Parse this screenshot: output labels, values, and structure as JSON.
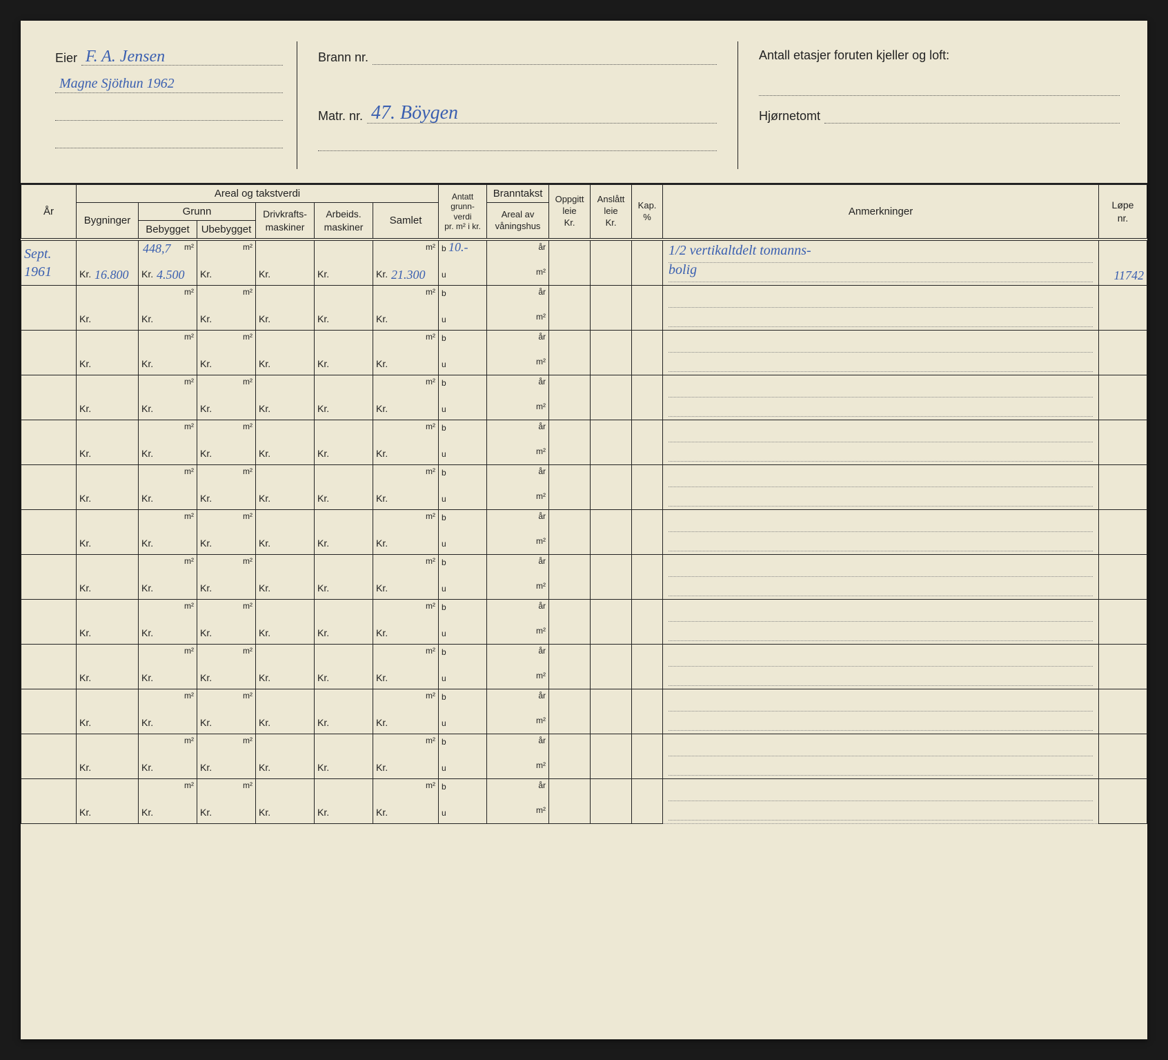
{
  "header": {
    "eier_label": "Eier",
    "eier_line1": "F. A. Jensen",
    "eier_line2": "Magne Sjöthun 1962",
    "brann_label": "Brann nr.",
    "brann_value": "",
    "matr_label": "Matr. nr.",
    "matr_value": "47. Böygen",
    "etasjer_label": "Antall etasjer foruten kjeller og loft:",
    "etasjer_value": "",
    "hjornetomt_label": "Hjørnetomt",
    "hjornetomt_value": ""
  },
  "columns": {
    "ar": "År",
    "areal_takst": "Areal og takstverdi",
    "bygninger": "Bygninger",
    "grunn": "Grunn",
    "bebygget": "Bebygget",
    "ubebygget": "Ubebygget",
    "drivkrafts": "Drivkrafts-\nmaskiner",
    "arbeids": "Arbeids.\nmaskiner",
    "samlet": "Samlet",
    "antatt": "Antatt\ngrunn-\nverdi\npr. m² i kr.",
    "branntakst": "Branntakst",
    "areal_av": "Areal av\nvåningshus",
    "oppgitt": "Oppgitt\nleie\nKr.",
    "anslatt": "Anslått\nleie\nKr.",
    "kap": "Kap.\n%",
    "anmerkninger": "Anmerkninger",
    "lope": "Løpe\nnr."
  },
  "units": {
    "m2": "m²",
    "kr": "Kr.",
    "b": "b",
    "u": "u",
    "ar": "år"
  },
  "rows": [
    {
      "ar": "Sept.\n1961",
      "bygninger_kr": "16.800",
      "bebygget_m2": "448,7",
      "bebygget_kr": "4.500",
      "ubebygget_m2": "",
      "ubebygget_kr": "",
      "drivkrafts_kr": "",
      "arbeids_kr": "",
      "samlet_m2": "",
      "samlet_kr": "21.300",
      "antatt_b": "10.-",
      "branntakst_ar": "",
      "branntakst_m2": "",
      "anmerkninger": "1/2 vertikaltdelt tomanns-\nbolig",
      "lope": "11742"
    },
    {},
    {},
    {},
    {},
    {},
    {},
    {},
    {},
    {},
    {},
    {},
    {}
  ]
}
